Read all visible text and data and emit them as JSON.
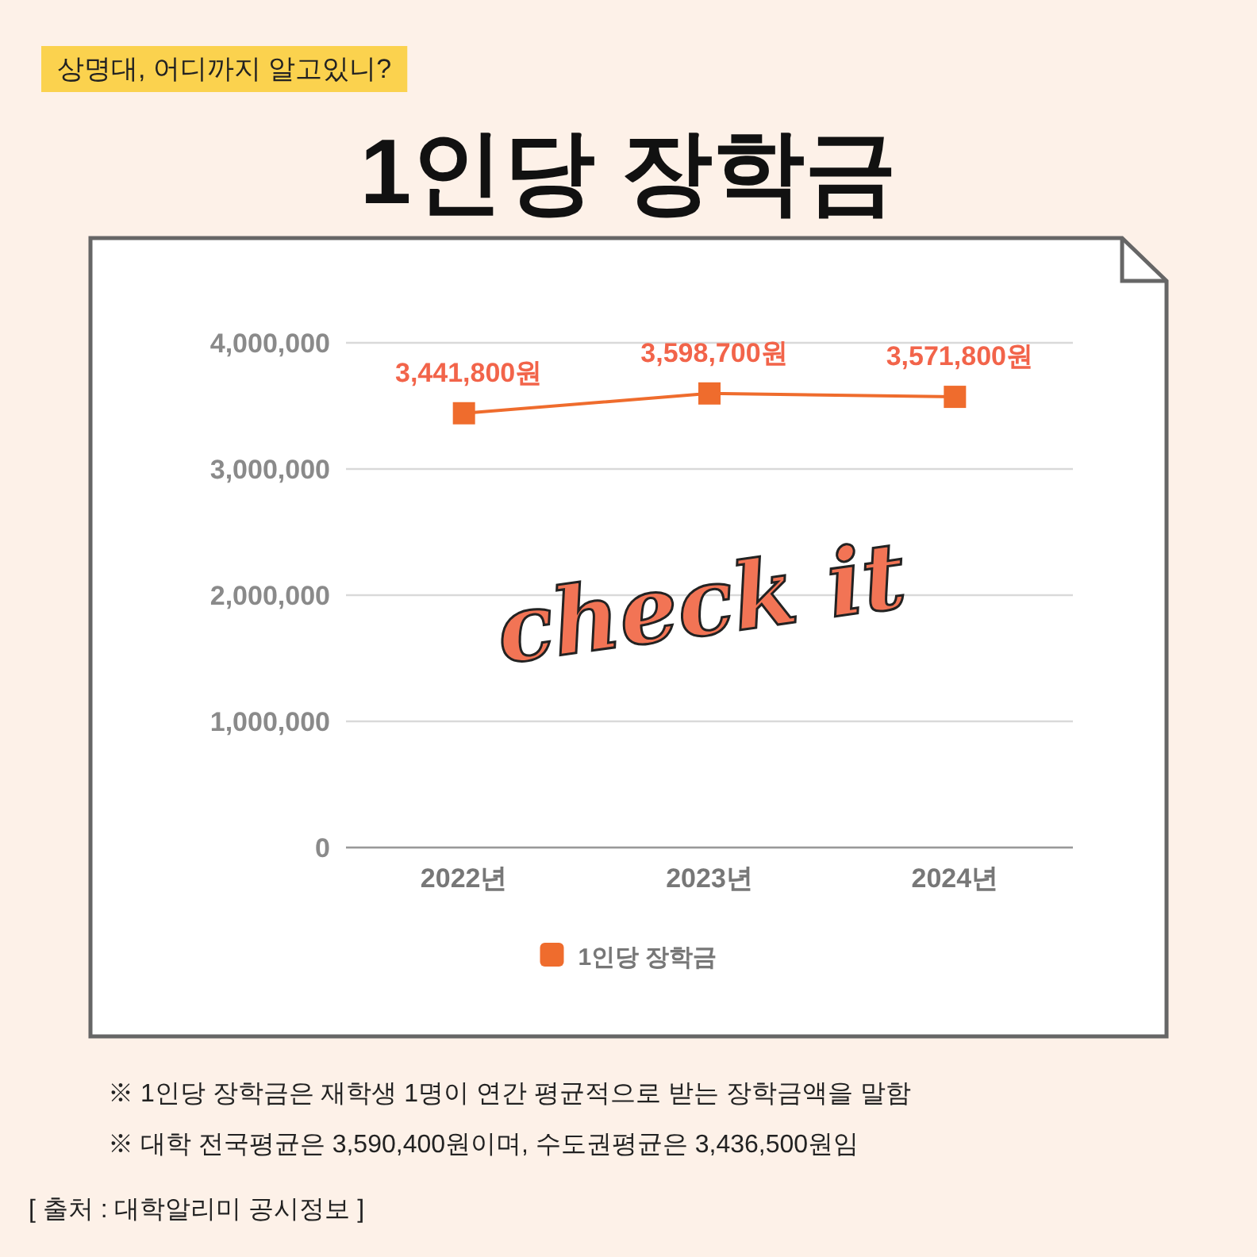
{
  "chart_data": {
    "type": "line",
    "title": "1인당 장학금",
    "subtitle": "상명대, 어디까지 알고있니?",
    "categories": [
      "2022년",
      "2023년",
      "2024년"
    ],
    "series": [
      {
        "name": "1인당 장학금",
        "color": "#ef6c2d",
        "values": [
          3441800,
          3598700,
          3571800
        ],
        "value_labels": [
          "3,441,800원",
          "3,598,700원",
          "3,571,800원"
        ]
      }
    ],
    "ylim": [
      0,
      4000000
    ],
    "yticks": [
      {
        "value": 0,
        "label": "0"
      },
      {
        "value": 1000000,
        "label": "1,000,000"
      },
      {
        "value": 2000000,
        "label": "2,000,000"
      },
      {
        "value": 3000000,
        "label": "3,000,000"
      },
      {
        "value": 4000000,
        "label": "4,000,000"
      }
    ],
    "grid": "y",
    "legend": "bottom",
    "marker": "square",
    "line_style": "solid",
    "annotations": [
      "check it",
      "※ 1인당 장학금은 재학생 1명이 연간 평균적으로 받는 장학금액을 말함",
      "※ 대학 전국평균은 3,590,400원이며, 수도권평균은 3,436,500원임",
      "[ 출처 : 대학알리미 공시정보 ]"
    ]
  }
}
